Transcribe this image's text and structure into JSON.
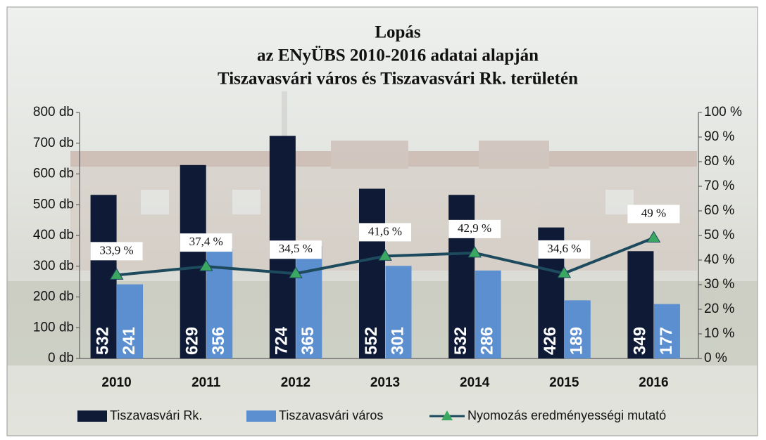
{
  "chart_data": {
    "type": "bar_line",
    "title": [
      "Lopás",
      "az ENyÜBS  2010-2016 adatai alapján",
      "Tiszavasvári város és Tiszavasvári Rk. területén"
    ],
    "categories": [
      "2010",
      "2011",
      "2012",
      "2013",
      "2014",
      "2015",
      "2016"
    ],
    "series": [
      {
        "name": "Tiszavasvári Rk.",
        "type": "bar",
        "color": "#0e1a36",
        "values": [
          532,
          629,
          724,
          552,
          532,
          426,
          349
        ]
      },
      {
        "name": "Tiszavasvári város",
        "type": "bar",
        "color": "#5b8fd0",
        "values": [
          241,
          356,
          365,
          301,
          286,
          189,
          177
        ]
      },
      {
        "name": "Nyomozás eredményességi mutató",
        "type": "line",
        "axis": "y2",
        "color": "#1d4a5c",
        "marker_color": "#3aa860",
        "values": [
          33.9,
          37.4,
          34.5,
          41.6,
          42.9,
          34.6,
          49
        ],
        "value_labels": [
          "33,9 %",
          "37,4 %",
          "34,5 %",
          "41,6 %",
          "42,9 %",
          "34,6 %",
          "49 %"
        ]
      }
    ],
    "ylim": [
      0,
      800
    ],
    "yticks": [
      {
        "value": 0,
        "label": "0 db"
      },
      {
        "value": 100,
        "label": "100 db"
      },
      {
        "value": 200,
        "label": "200 db"
      },
      {
        "value": 300,
        "label": "300 db"
      },
      {
        "value": 400,
        "label": "400 db"
      },
      {
        "value": 500,
        "label": "500 db"
      },
      {
        "value": 600,
        "label": "600 db"
      },
      {
        "value": 700,
        "label": "700 db"
      },
      {
        "value": 800,
        "label": "800 db"
      }
    ],
    "y2lim": [
      0,
      100
    ],
    "y2ticks": [
      {
        "value": 0,
        "label": "0 %"
      },
      {
        "value": 10,
        "label": "10 %"
      },
      {
        "value": 20,
        "label": "20 %"
      },
      {
        "value": 30,
        "label": "30 %"
      },
      {
        "value": 40,
        "label": "40 %"
      },
      {
        "value": 50,
        "label": "50 %"
      },
      {
        "value": 60,
        "label": "60 %"
      },
      {
        "value": 70,
        "label": "70 %"
      },
      {
        "value": 80,
        "label": "80 %"
      },
      {
        "value": 90,
        "label": "90 %"
      },
      {
        "value": 100,
        "label": "100 %"
      }
    ],
    "legend": "bottom"
  }
}
